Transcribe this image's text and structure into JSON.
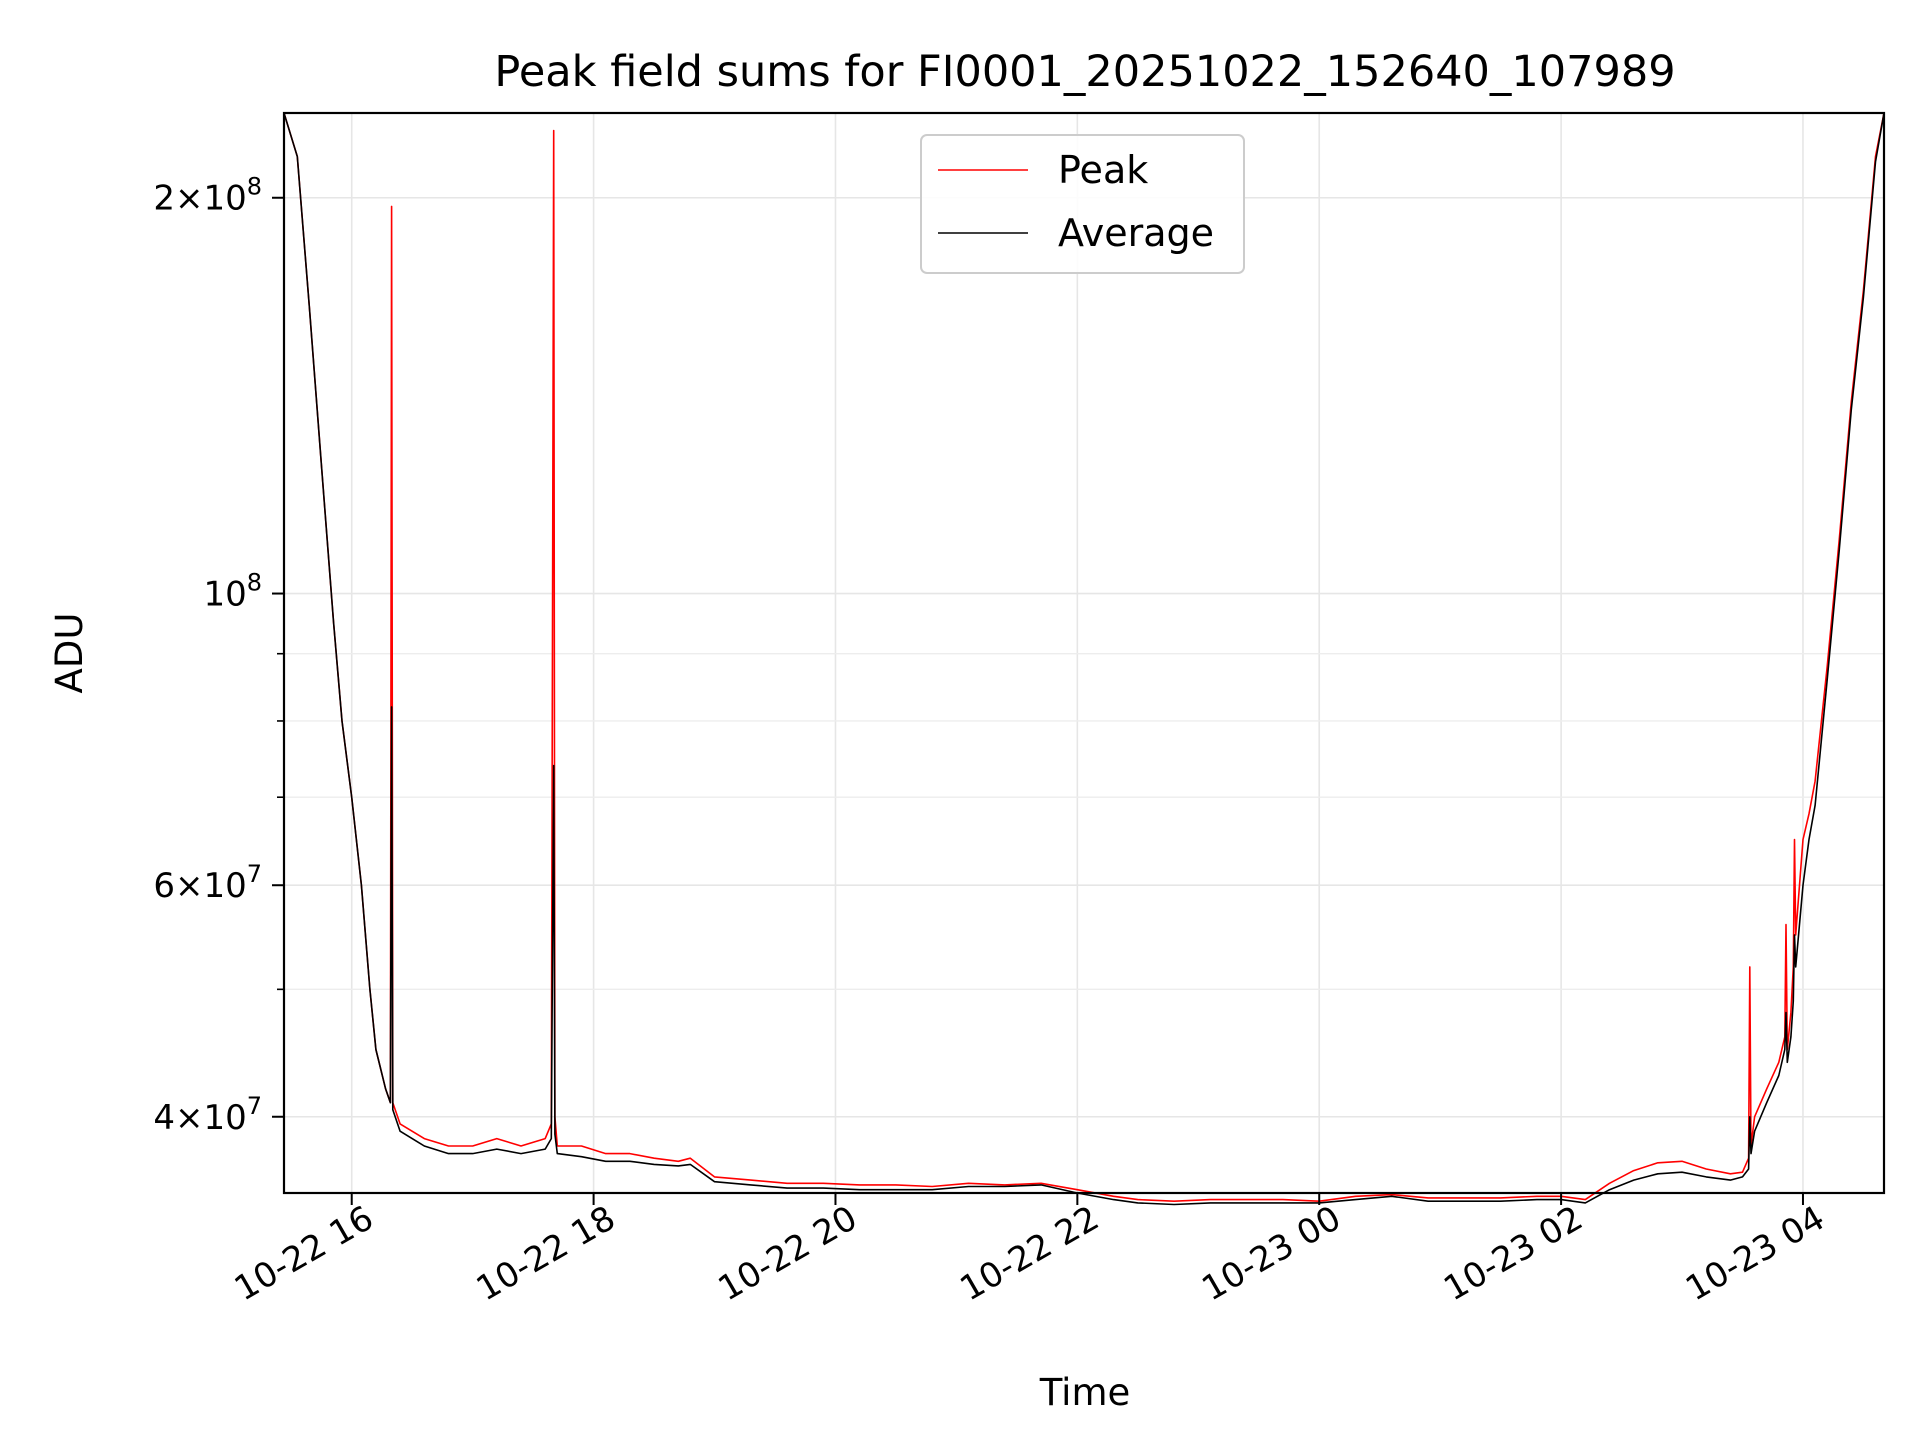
{
  "chart_data": {
    "type": "line",
    "title": "Peak field sums for FI0001_20251022_152640_107989",
    "xlabel": "Time",
    "ylabel": "ADU",
    "yscale": "log",
    "grid": true,
    "legend": "upper center",
    "x_unit": "hours since 10-22 00:00",
    "xlim": [
      15.44,
      28.67
    ],
    "ylim": [
      35000000,
      232000000
    ],
    "x_ticks": [
      {
        "value": 16,
        "label": "10-22 16"
      },
      {
        "value": 18,
        "label": "10-22 18"
      },
      {
        "value": 20,
        "label": "10-22 20"
      },
      {
        "value": 22,
        "label": "10-22 22"
      },
      {
        "value": 24,
        "label": "10-23 00"
      },
      {
        "value": 26,
        "label": "10-23 02"
      },
      {
        "value": 28,
        "label": "10-23 04"
      }
    ],
    "y_ticks": [
      {
        "value": 40000000,
        "base": "4",
        "exp": "7"
      },
      {
        "value": 60000000,
        "base": "6",
        "exp": "7"
      },
      {
        "value": 100000000,
        "base": "10",
        "exp": "8"
      },
      {
        "value": 200000000,
        "base": "2",
        "exp": "8"
      }
    ],
    "y_minor_ticks": [
      50000000,
      70000000,
      80000000,
      90000000
    ],
    "series": [
      {
        "name": "Peak",
        "color": "#ff0000",
        "x": [
          15.44,
          15.55,
          15.65,
          15.75,
          15.85,
          15.92,
          16.0,
          16.08,
          16.15,
          16.2,
          16.28,
          16.32,
          16.33,
          16.34,
          16.4,
          16.6,
          16.8,
          17.0,
          17.2,
          17.4,
          17.6,
          17.65,
          17.67,
          17.68,
          17.7,
          17.9,
          18.1,
          18.3,
          18.5,
          18.7,
          18.8,
          19.0,
          19.3,
          19.6,
          19.9,
          20.2,
          20.5,
          20.8,
          21.1,
          21.4,
          21.7,
          22.0,
          22.3,
          22.5,
          22.8,
          23.1,
          23.4,
          23.7,
          24.0,
          24.3,
          24.6,
          24.9,
          25.2,
          25.5,
          25.8,
          26.0,
          26.2,
          26.4,
          26.6,
          26.8,
          27.0,
          27.2,
          27.4,
          27.5,
          27.55,
          27.56,
          27.57,
          27.6,
          27.7,
          27.8,
          27.85,
          27.86,
          27.87,
          27.9,
          27.92,
          27.93,
          27.94,
          28.0,
          28.05,
          28.1,
          28.2,
          28.3,
          28.4,
          28.5,
          28.6,
          28.67
        ],
        "y": [
          232000000,
          215000000,
          165000000,
          125000000,
          95000000,
          80000000,
          70000000,
          60000000,
          50000000,
          45000000,
          42000000,
          41000000,
          197000000,
          41000000,
          39500000,
          38500000,
          38000000,
          38000000,
          38500000,
          38000000,
          38500000,
          39500000,
          225000000,
          40000000,
          38000000,
          38000000,
          37500000,
          37500000,
          37200000,
          37000000,
          37200000,
          36000000,
          35800000,
          35600000,
          35600000,
          35500000,
          35500000,
          35400000,
          35600000,
          35500000,
          35600000,
          35200000,
          34800000,
          34600000,
          34500000,
          34600000,
          34600000,
          34600000,
          34500000,
          34800000,
          34900000,
          34700000,
          34700000,
          34700000,
          34800000,
          34800000,
          34600000,
          35600000,
          36400000,
          36900000,
          37000000,
          36500000,
          36200000,
          36300000,
          37200000,
          52000000,
          38000000,
          40000000,
          42000000,
          44000000,
          46000000,
          56000000,
          45000000,
          48000000,
          52000000,
          65000000,
          55000000,
          65000000,
          68000000,
          72000000,
          88000000,
          110000000,
          140000000,
          170000000,
          215000000,
          232000000
        ]
      },
      {
        "name": "Average",
        "color": "#000000",
        "x": [
          15.44,
          15.55,
          15.65,
          15.75,
          15.85,
          15.92,
          16.0,
          16.08,
          16.15,
          16.2,
          16.28,
          16.32,
          16.33,
          16.34,
          16.4,
          16.6,
          16.8,
          17.0,
          17.2,
          17.4,
          17.6,
          17.65,
          17.67,
          17.68,
          17.7,
          17.9,
          18.1,
          18.3,
          18.5,
          18.7,
          18.8,
          19.0,
          19.3,
          19.6,
          19.9,
          20.2,
          20.5,
          20.8,
          21.1,
          21.4,
          21.7,
          22.0,
          22.3,
          22.5,
          22.8,
          23.1,
          23.4,
          23.7,
          24.0,
          24.3,
          24.6,
          24.9,
          25.2,
          25.5,
          25.8,
          26.0,
          26.2,
          26.4,
          26.6,
          26.8,
          27.0,
          27.2,
          27.4,
          27.5,
          27.55,
          27.56,
          27.57,
          27.6,
          27.7,
          27.8,
          27.85,
          27.86,
          27.87,
          27.9,
          27.92,
          27.93,
          27.94,
          28.0,
          28.05,
          28.1,
          28.2,
          28.3,
          28.4,
          28.5,
          28.6,
          28.67
        ],
        "y": [
          232000000,
          215000000,
          165000000,
          125000000,
          95000000,
          80000000,
          70000000,
          60000000,
          50000000,
          45000000,
          42000000,
          41000000,
          82000000,
          40500000,
          39000000,
          38000000,
          37500000,
          37500000,
          37800000,
          37500000,
          37800000,
          38500000,
          74000000,
          38800000,
          37500000,
          37300000,
          37000000,
          37000000,
          36800000,
          36700000,
          36800000,
          35700000,
          35500000,
          35300000,
          35300000,
          35200000,
          35200000,
          35200000,
          35400000,
          35400000,
          35500000,
          35000000,
          34600000,
          34400000,
          34300000,
          34400000,
          34400000,
          34400000,
          34400000,
          34600000,
          34800000,
          34500000,
          34500000,
          34500000,
          34600000,
          34600000,
          34400000,
          35200000,
          35800000,
          36200000,
          36300000,
          36000000,
          35800000,
          36000000,
          36500000,
          40000000,
          37500000,
          39000000,
          41000000,
          43000000,
          45000000,
          48000000,
          44000000,
          46000000,
          49000000,
          55000000,
          52000000,
          60000000,
          65000000,
          69000000,
          86000000,
          108000000,
          138000000,
          168000000,
          213000000,
          232000000
        ]
      }
    ]
  }
}
